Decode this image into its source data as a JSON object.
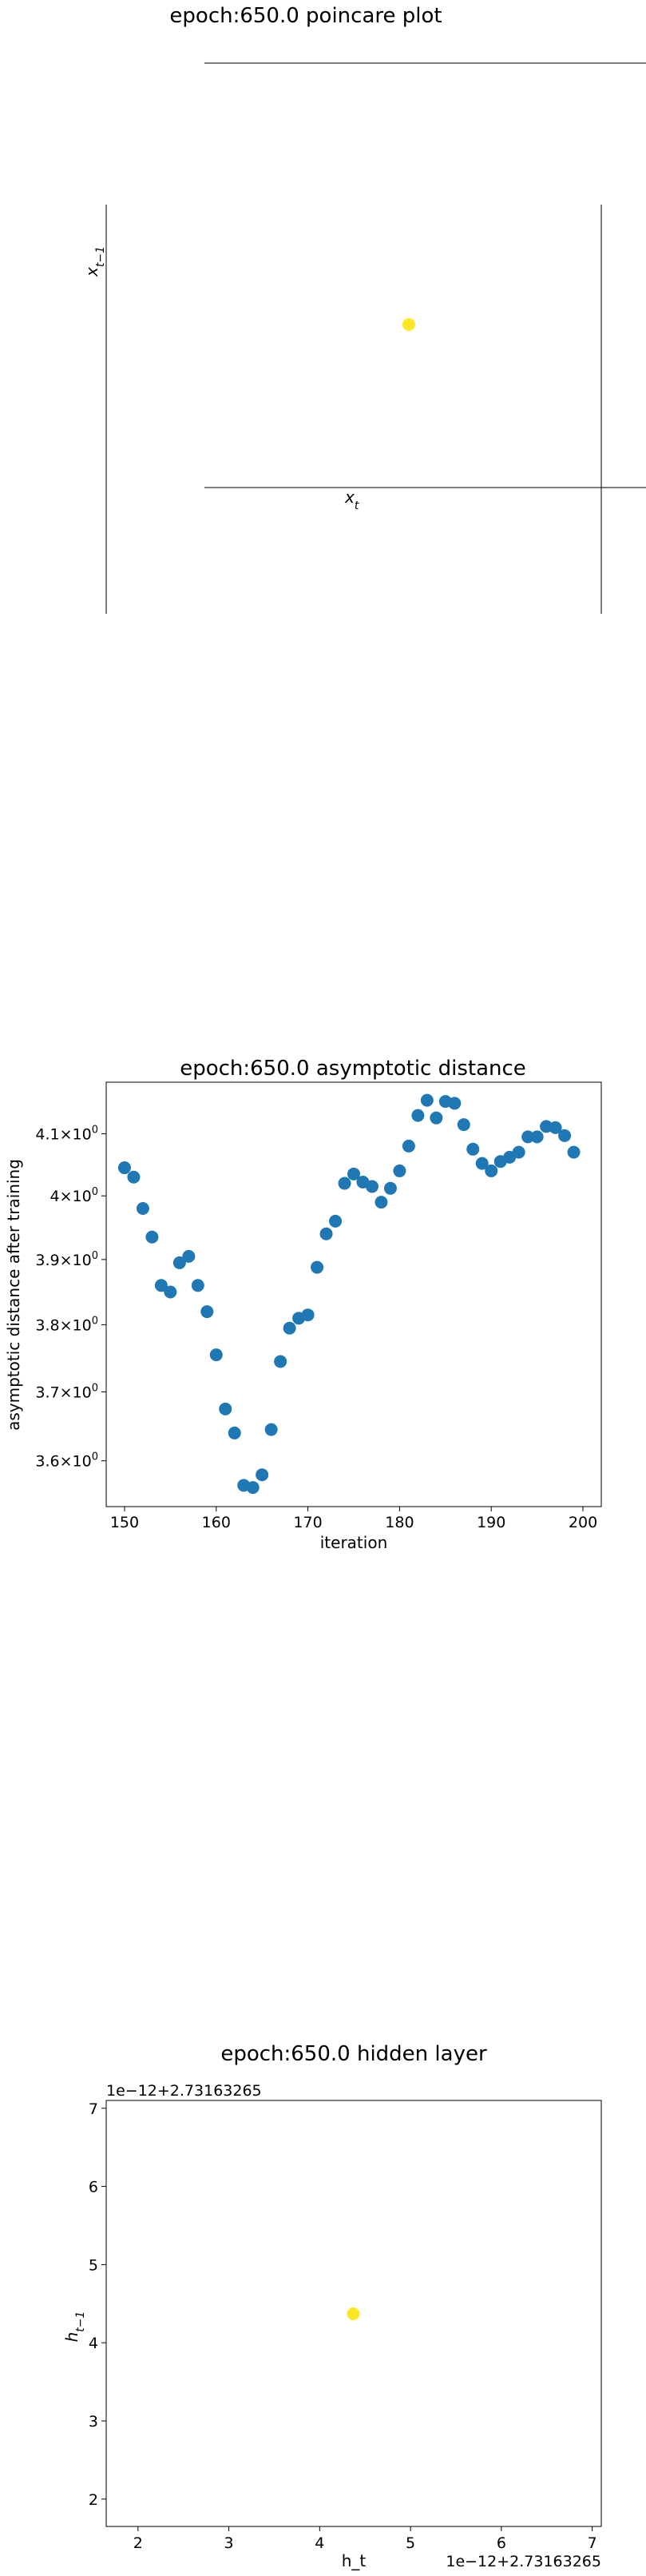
{
  "chart_data": [
    {
      "type": "scatter",
      "title": "epoch:650.0 poincare plot",
      "xlabel": "x_t",
      "ylabel": "x_{t-1}",
      "points": [
        {
          "x": 0,
          "y": 0
        }
      ],
      "point_color": "#fde725"
    },
    {
      "type": "scatter",
      "title": "epoch:650.0 asymptotic distance",
      "xlabel": "iteration",
      "ylabel": "asymptotic distance after training",
      "y_scale": "log",
      "xlim": [
        148,
        202
      ],
      "ylim": [
        3.535,
        4.185
      ],
      "x_ticks": [
        150,
        160,
        170,
        180,
        190,
        200
      ],
      "y_ticks": [
        {
          "v": 3.6,
          "mant": "3.6",
          "exp": "0"
        },
        {
          "v": 3.7,
          "mant": "3.7",
          "exp": "0"
        },
        {
          "v": 3.8,
          "mant": "3.8",
          "exp": "0"
        },
        {
          "v": 3.9,
          "mant": "3.9",
          "exp": "0"
        },
        {
          "v": 4.0,
          "mant": "4",
          "exp": "0"
        },
        {
          "v": 4.1,
          "mant": "4.1",
          "exp": "0"
        }
      ],
      "point_color": "#1f77b4",
      "x": [
        150,
        151,
        152,
        153,
        154,
        155,
        156,
        157,
        158,
        159,
        160,
        161,
        162,
        163,
        164,
        165,
        166,
        167,
        168,
        169,
        170,
        171,
        172,
        173,
        174,
        175,
        176,
        177,
        178,
        179,
        180,
        181,
        182,
        183,
        184,
        185,
        186,
        187,
        188,
        189,
        190,
        191,
        192,
        193,
        194,
        195,
        196,
        197,
        198,
        199
      ],
      "y": [
        4.045,
        4.03,
        3.98,
        3.935,
        3.86,
        3.85,
        3.895,
        3.905,
        3.86,
        3.82,
        3.755,
        3.675,
        3.64,
        3.565,
        3.562,
        3.58,
        3.645,
        3.745,
        3.795,
        3.81,
        3.815,
        3.888,
        3.94,
        3.96,
        4.02,
        4.035,
        4.022,
        4.015,
        3.99,
        4.012,
        4.04,
        4.08,
        4.13,
        4.155,
        4.126,
        4.153,
        4.15,
        4.115,
        4.075,
        4.052,
        4.04,
        4.055,
        4.062,
        4.07,
        4.095,
        4.095,
        4.112,
        4.11,
        4.097,
        4.07
      ]
    },
    {
      "type": "scatter",
      "title": "epoch:650.0 hidden layer",
      "xlabel": "h_t",
      "ylabel": "h_{t-1}",
      "x_offset_text": "1e−12+2.73163265",
      "y_offset_text": "1e−12+2.73163265",
      "xlim": [
        1.65,
        7.1
      ],
      "ylim": [
        1.65,
        7.1
      ],
      "x_ticks": [
        2,
        3,
        4,
        5,
        6,
        7
      ],
      "y_ticks": [
        2,
        3,
        4,
        5,
        6,
        7
      ],
      "points": [
        {
          "x": 4.37,
          "y": 4.37
        }
      ],
      "point_color": "#fde725"
    }
  ]
}
